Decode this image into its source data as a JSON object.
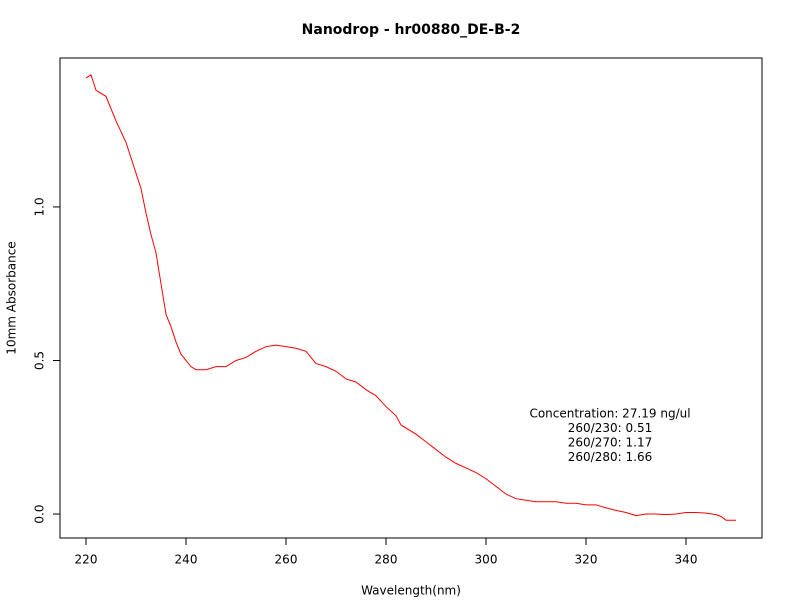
{
  "chart_data": {
    "type": "line",
    "title": "Nanodrop - hr00880_DE-B-2",
    "x_label": "Wavelength(nm)",
    "y_label": "10mm Absorbance",
    "annotations": [
      "Concentration: 27.19 ng/ul",
      "260/230: 0.51",
      "260/270: 1.17",
      "260/280: 1.66"
    ],
    "x": [
      220,
      221,
      222,
      224,
      226,
      228,
      230,
      231,
      232,
      233,
      234,
      235,
      236,
      237,
      238,
      239,
      240,
      241,
      242,
      244,
      246,
      248,
      250,
      252,
      254,
      256,
      258,
      260,
      262,
      264,
      266,
      268,
      270,
      272,
      274,
      276,
      278,
      280,
      282,
      283,
      286,
      288,
      290,
      292,
      294,
      296,
      298,
      300,
      302,
      304,
      306,
      308,
      310,
      312,
      314,
      316,
      318,
      320,
      322,
      324,
      326,
      328,
      330,
      332,
      334,
      336,
      338,
      340,
      342,
      344,
      346,
      347,
      348,
      350
    ],
    "series": [
      {
        "name": "Absorbance",
        "color": "#ff0000",
        "values": [
          1.42,
          1.43,
          1.38,
          1.36,
          1.28,
          1.21,
          1.11,
          1.06,
          0.98,
          0.91,
          0.85,
          0.75,
          0.65,
          0.61,
          0.56,
          0.52,
          0.5,
          0.48,
          0.47,
          0.47,
          0.48,
          0.48,
          0.5,
          0.51,
          0.53,
          0.545,
          0.55,
          0.545,
          0.54,
          0.53,
          0.49,
          0.48,
          0.465,
          0.44,
          0.43,
          0.405,
          0.385,
          0.35,
          0.32,
          0.29,
          0.26,
          0.235,
          0.21,
          0.185,
          0.165,
          0.15,
          0.135,
          0.115,
          0.09,
          0.065,
          0.05,
          0.045,
          0.04,
          0.04,
          0.04,
          0.035,
          0.035,
          0.03,
          0.03,
          0.02,
          0.012,
          0.005,
          -0.005,
          0,
          0,
          -0.002,
          0,
          0.005,
          0.005,
          0.003,
          -0.002,
          -0.008,
          -0.02,
          -0.02
        ]
      }
    ],
    "xlim": [
      214.8,
      355.2
    ],
    "ylim": [
      -0.078,
      1.485
    ],
    "xticks": [
      220,
      240,
      260,
      280,
      300,
      320,
      340
    ],
    "yticks": [
      {
        "value": 0,
        "label": "0.0"
      },
      0.5,
      {
        "value": 1,
        "label": "1.0"
      }
    ]
  }
}
